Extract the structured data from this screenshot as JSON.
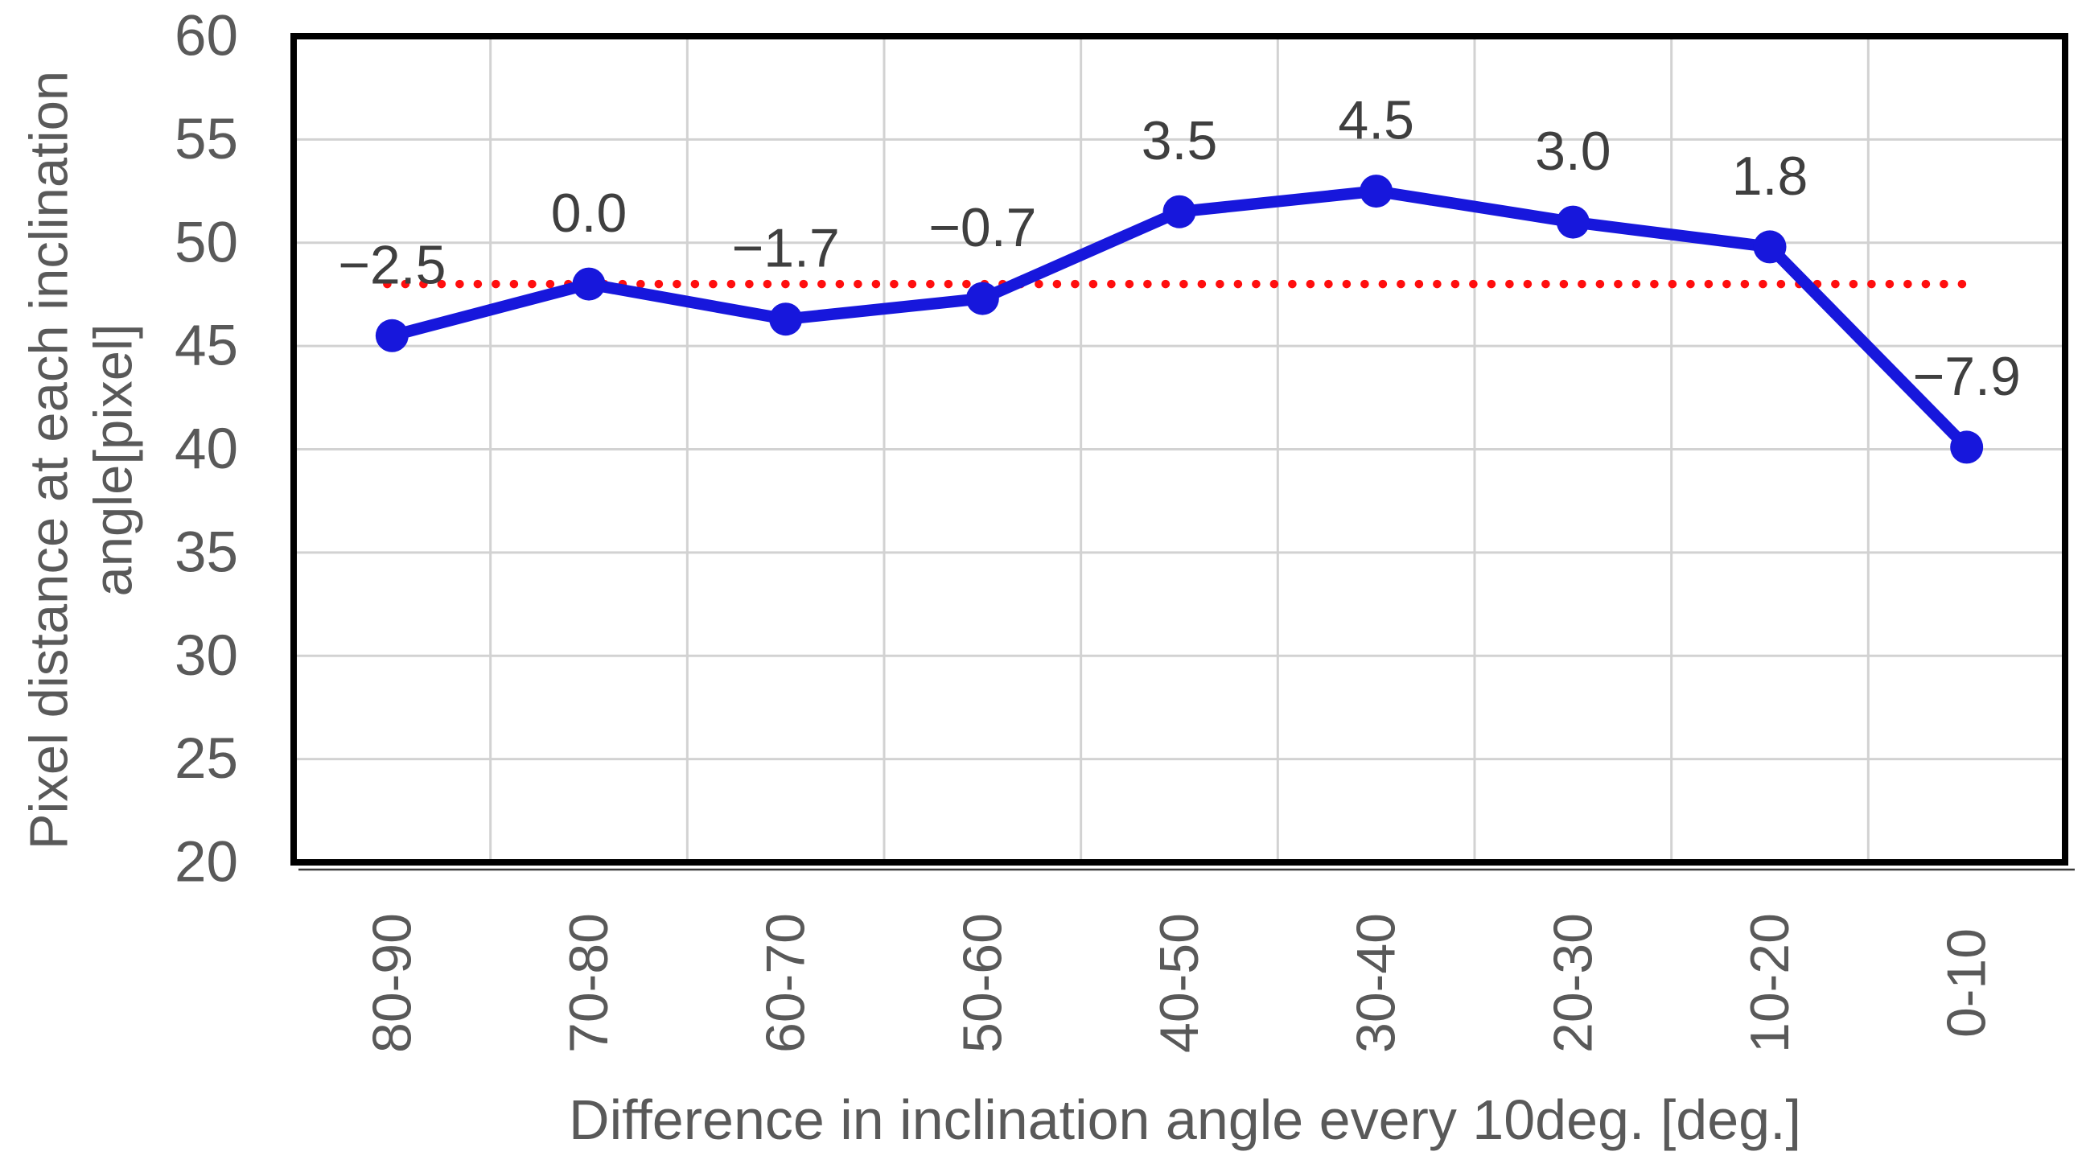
{
  "chart_data": {
    "type": "line",
    "title": "",
    "categories": [
      "80-90",
      "70-80",
      "60-70",
      "50-60",
      "40-50",
      "30-40",
      "20-30",
      "10-20",
      "0-10"
    ],
    "series": [
      {
        "name": "Pixel distance at each inclination angle",
        "values": [
          45.5,
          48.0,
          46.3,
          47.3,
          51.5,
          52.5,
          51.0,
          49.8,
          40.1
        ]
      }
    ],
    "point_labels": [
      "−2.5",
      "0.0",
      "−1.7",
      "−0.7",
      "3.5",
      "4.5",
      "3.0",
      "1.8",
      "−7.9"
    ],
    "reference_line": {
      "value": 48,
      "style": "dotted"
    },
    "xlabel": "Difference in inclination angle every 10deg. [deg.]",
    "ylabel_line1": "Pixel distance at each inclination",
    "ylabel_line2": "angle[pixel]",
    "ylim": [
      20,
      60
    ],
    "yticks": [
      60,
      55,
      50,
      45,
      40,
      35,
      30,
      25,
      20
    ],
    "grid": true,
    "legend": "none",
    "colors": {
      "line": "#1717DC",
      "marker": "#1717DC",
      "reference": "#FF0E0E",
      "grid": "#D2D2D2",
      "border": "#000000",
      "axis_text": "#595959",
      "label_text": "#3F3F3F",
      "background": "#FFFFFF"
    }
  }
}
